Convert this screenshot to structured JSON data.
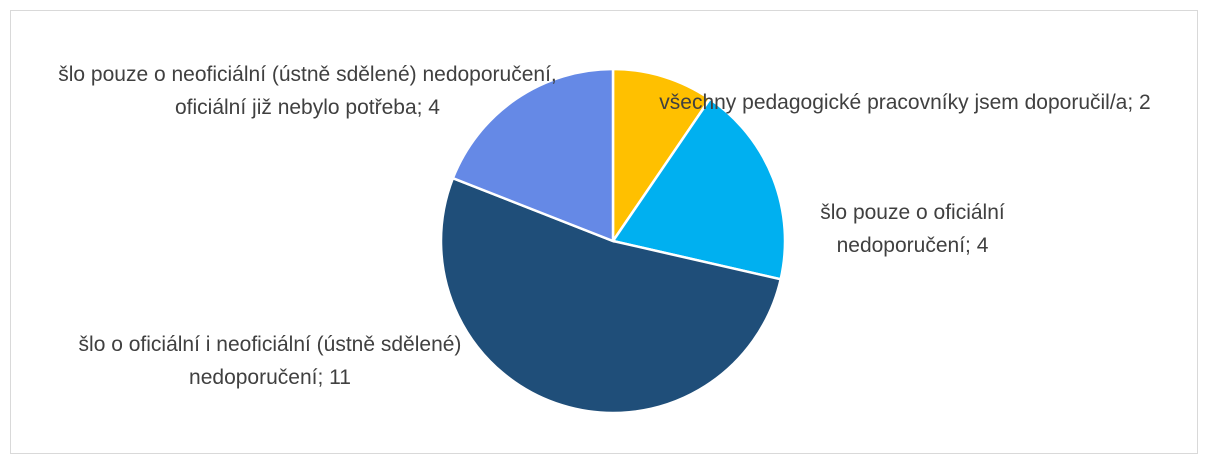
{
  "chart_data": {
    "type": "pie",
    "categories": [
      "všechny pedagogické pracovníky jsem doporučil/a",
      "šlo pouze o oficiální nedoporučení",
      "šlo o oficiální i neoficiální (ústně sdělené) nedoporučení",
      "šlo pouze o neoficiální (ústně sdělené) nedoporučení, oficiální již nebylo potřeba"
    ],
    "values": [
      2,
      4,
      11,
      4
    ],
    "value_labels": [
      "; 2",
      "; 4",
      "; 11",
      "; 4"
    ],
    "colors": [
      "#FFC000",
      "#00B0F0",
      "#1F4E79",
      "#6589E6"
    ]
  }
}
